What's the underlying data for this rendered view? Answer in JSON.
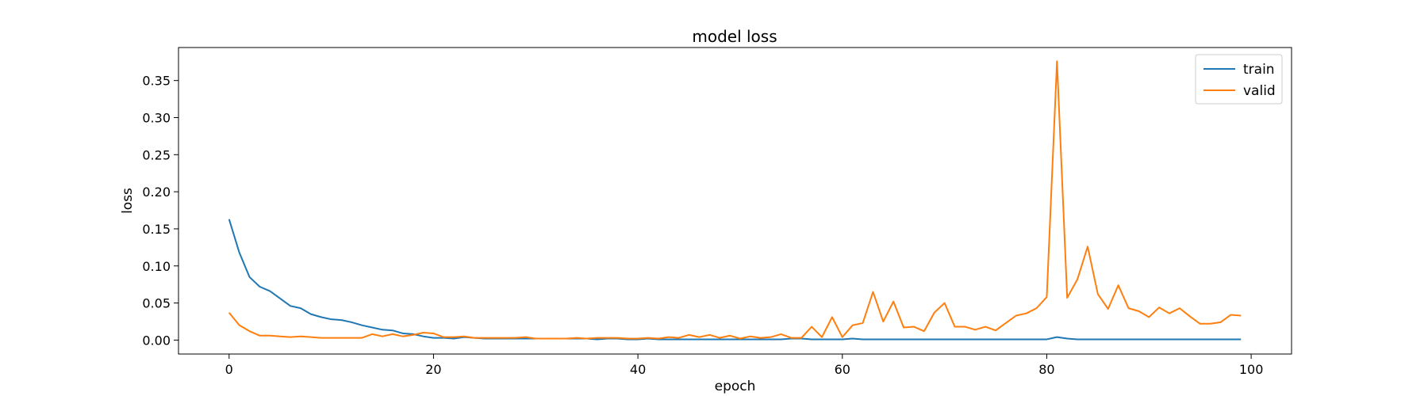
{
  "chart_data": {
    "type": "line",
    "title": "model loss",
    "xlabel": "epoch",
    "ylabel": "loss",
    "xlim": [
      -4.95,
      103.95
    ],
    "ylim": [
      -0.0188,
      0.3945
    ],
    "xticks": [
      0,
      20,
      40,
      60,
      80,
      100
    ],
    "yticks": [
      0.0,
      0.05,
      0.1,
      0.15,
      0.2,
      0.25,
      0.3,
      0.35
    ],
    "ytick_format": 2,
    "grid": false,
    "legend_position": "top-right",
    "x": [
      0,
      1,
      2,
      3,
      4,
      5,
      6,
      7,
      8,
      9,
      10,
      11,
      12,
      13,
      14,
      15,
      16,
      17,
      18,
      19,
      20,
      21,
      22,
      23,
      24,
      25,
      26,
      27,
      28,
      29,
      30,
      31,
      32,
      33,
      34,
      35,
      36,
      37,
      38,
      39,
      40,
      41,
      42,
      43,
      44,
      45,
      46,
      47,
      48,
      49,
      50,
      51,
      52,
      53,
      54,
      55,
      56,
      57,
      58,
      59,
      60,
      61,
      62,
      63,
      64,
      65,
      66,
      67,
      68,
      69,
      70,
      71,
      72,
      73,
      74,
      75,
      76,
      77,
      78,
      79,
      80,
      81,
      82,
      83,
      84,
      85,
      86,
      87,
      88,
      89,
      90,
      91,
      92,
      93,
      94,
      95,
      96,
      97,
      98,
      99
    ],
    "series": [
      {
        "name": "train",
        "color": "#1f77b4",
        "values": [
          0.163,
          0.118,
          0.085,
          0.072,
          0.066,
          0.056,
          0.046,
          0.043,
          0.035,
          0.031,
          0.028,
          0.027,
          0.024,
          0.02,
          0.017,
          0.014,
          0.013,
          0.009,
          0.008,
          0.005,
          0.003,
          0.003,
          0.002,
          0.004,
          0.003,
          0.002,
          0.002,
          0.002,
          0.002,
          0.002,
          0.002,
          0.002,
          0.002,
          0.002,
          0.002,
          0.002,
          0.001,
          0.002,
          0.002,
          0.001,
          0.001,
          0.002,
          0.001,
          0.001,
          0.001,
          0.001,
          0.001,
          0.001,
          0.001,
          0.001,
          0.001,
          0.001,
          0.001,
          0.001,
          0.001,
          0.002,
          0.002,
          0.001,
          0.001,
          0.001,
          0.001,
          0.002,
          0.001,
          0.001,
          0.001,
          0.001,
          0.001,
          0.001,
          0.001,
          0.001,
          0.001,
          0.001,
          0.001,
          0.001,
          0.001,
          0.001,
          0.001,
          0.001,
          0.001,
          0.001,
          0.001,
          0.004,
          0.002,
          0.001,
          0.001,
          0.001,
          0.001,
          0.001,
          0.001,
          0.001,
          0.001,
          0.001,
          0.001,
          0.001,
          0.001,
          0.001,
          0.001,
          0.001,
          0.001,
          0.001
        ]
      },
      {
        "name": "valid",
        "color": "#ff7f0e",
        "values": [
          0.037,
          0.02,
          0.012,
          0.006,
          0.006,
          0.005,
          0.004,
          0.005,
          0.004,
          0.003,
          0.003,
          0.003,
          0.003,
          0.003,
          0.008,
          0.005,
          0.008,
          0.005,
          0.007,
          0.01,
          0.009,
          0.004,
          0.004,
          0.005,
          0.003,
          0.003,
          0.003,
          0.003,
          0.003,
          0.004,
          0.002,
          0.002,
          0.002,
          0.002,
          0.003,
          0.002,
          0.003,
          0.003,
          0.003,
          0.002,
          0.002,
          0.003,
          0.002,
          0.004,
          0.003,
          0.007,
          0.004,
          0.007,
          0.003,
          0.006,
          0.002,
          0.005,
          0.003,
          0.004,
          0.008,
          0.003,
          0.003,
          0.018,
          0.004,
          0.031,
          0.004,
          0.02,
          0.023,
          0.065,
          0.025,
          0.052,
          0.017,
          0.018,
          0.012,
          0.037,
          0.05,
          0.018,
          0.018,
          0.014,
          0.018,
          0.013,
          0.023,
          0.033,
          0.036,
          0.043,
          0.058,
          0.376,
          0.057,
          0.082,
          0.126,
          0.062,
          0.042,
          0.074,
          0.043,
          0.039,
          0.031,
          0.044,
          0.036,
          0.043,
          0.032,
          0.022,
          0.022,
          0.024,
          0.034,
          0.033
        ]
      }
    ]
  }
}
